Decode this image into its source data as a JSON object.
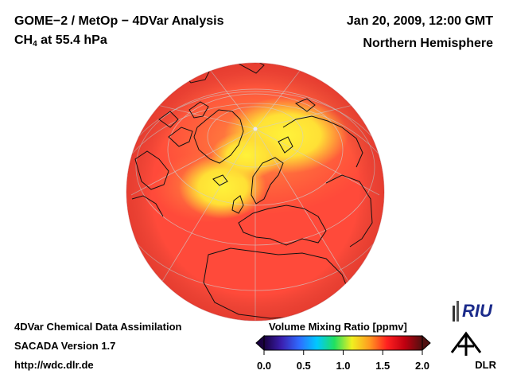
{
  "header": {
    "title": "GOME−2 / MetOp − 4DVar Analysis",
    "species_prefix": "CH",
    "species_subscript": "4",
    "species_suffix": " at 55.4 hPa",
    "date": "Jan 20, 2009, 12:00 GMT",
    "region": "Northern Hemisphere"
  },
  "footer": {
    "line1": "4DVar Chemical Data Assimilation",
    "line2": "SACADA Version 1.7",
    "line3": "http://wdc.dlr.de"
  },
  "colorbar": {
    "title": "Volume Mixing Ratio [ppmv]",
    "ticks": [
      "0.0",
      "0.5",
      "1.0",
      "1.5",
      "2.0"
    ],
    "range": [
      0.0,
      2.0
    ],
    "colors": [
      "#1a0040",
      "#3b1fb0",
      "#2f6bff",
      "#00c8ff",
      "#20e060",
      "#f0f020",
      "#ff9a20",
      "#ff2020",
      "#c00010",
      "#501010"
    ]
  },
  "map": {
    "projection": "orthographic, north pole view",
    "field_colors": {
      "background": "#ff4a3a",
      "moderate": "#ff8840",
      "high": "#ffe838"
    }
  },
  "logos": {
    "riu": "RIU",
    "dlr": "DLR"
  }
}
